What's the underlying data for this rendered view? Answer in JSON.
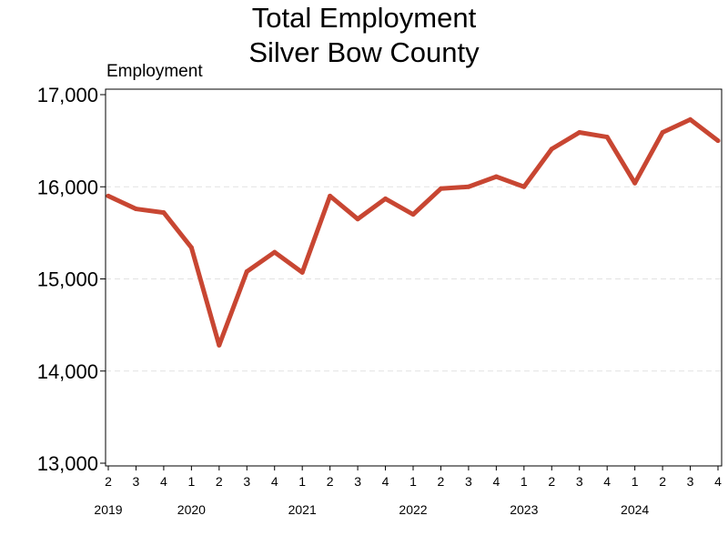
{
  "chart_data": {
    "type": "line",
    "title": [
      "Total Employment",
      "Silver Bow County"
    ],
    "ylabel": "Employment",
    "xlabel": "",
    "ylim": [
      13000,
      17000
    ],
    "yticks": [
      13000,
      14000,
      15000,
      16000,
      17000
    ],
    "ytick_labels": [
      "13,000",
      "14,000",
      "15,000",
      "16,000",
      "17,000"
    ],
    "grid": "horizontal dashed",
    "line_color": "#c84632",
    "quarters": [
      "2",
      "3",
      "4",
      "1",
      "2",
      "3",
      "4",
      "1",
      "2",
      "3",
      "4",
      "1",
      "2",
      "3",
      "4",
      "1",
      "2",
      "3",
      "4",
      "1",
      "2",
      "3",
      "4"
    ],
    "years": [
      {
        "label": "2019",
        "first_index": 0
      },
      {
        "label": "2020",
        "first_index": 3
      },
      {
        "label": "2021",
        "first_index": 7
      },
      {
        "label": "2022",
        "first_index": 11
      },
      {
        "label": "2023",
        "first_index": 15
      },
      {
        "label": "2024",
        "first_index": 19
      }
    ],
    "series": [
      {
        "values": [
          15900,
          15760,
          15720,
          15340,
          14280,
          15080,
          15290,
          15070,
          15900,
          15650,
          15870,
          15700,
          15980,
          16000,
          16110,
          16000,
          16410,
          16590,
          16540,
          16040,
          16590,
          16730,
          16500
        ]
      }
    ]
  }
}
